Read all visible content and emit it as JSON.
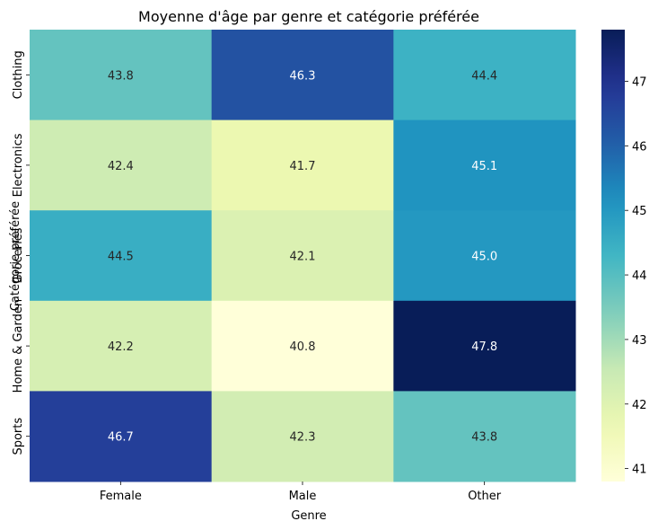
{
  "chart_data": {
    "type": "heatmap",
    "title": "Moyenne d'âge par genre et catégorie préférée",
    "xlabel": "Genre",
    "ylabel": "Catégorie préférée",
    "x_categories": [
      "Female",
      "Male",
      "Other"
    ],
    "y_categories": [
      "Clothing",
      "Electronics",
      "Groceries",
      "Home & Garden",
      "Sports"
    ],
    "values": [
      [
        43.8,
        46.3,
        44.4
      ],
      [
        42.4,
        41.7,
        45.1
      ],
      [
        44.5,
        42.1,
        45.0
      ],
      [
        42.2,
        40.8,
        47.8
      ],
      [
        46.7,
        42.3,
        43.8
      ]
    ],
    "value_labels": [
      [
        "43.8",
        "46.3",
        "44.4"
      ],
      [
        "42.4",
        "41.7",
        "45.1"
      ],
      [
        "44.5",
        "42.1",
        "45.0"
      ],
      [
        "42.2",
        "40.8",
        "47.8"
      ],
      [
        "46.7",
        "42.3",
        "43.8"
      ]
    ],
    "colormap": "YlGnBu",
    "colorbar": {
      "vmin": 40.8,
      "vmax": 47.8,
      "ticks": [
        41,
        42,
        43,
        44,
        45,
        46,
        47
      ],
      "tick_labels": [
        "41",
        "42",
        "43",
        "44",
        "45",
        "46",
        "47"
      ]
    }
  }
}
